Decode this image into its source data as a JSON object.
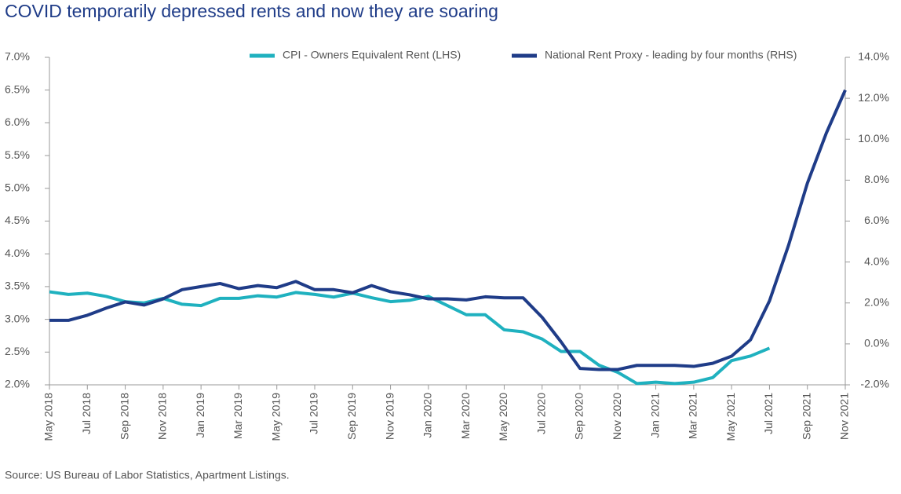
{
  "chart_data": {
    "type": "line",
    "title": "COVID temporarily depressed rents and now they are soaring",
    "source": "Source: US Bureau of Labor Statistics, Apartment Listings.",
    "categories": [
      "May 2018",
      null,
      "Jul 2018",
      null,
      "Sep 2018",
      null,
      "Nov 2018",
      null,
      "Jan 2019",
      null,
      "Mar 2019",
      null,
      "May 2019",
      null,
      "Jul 2019",
      null,
      "Sep 2019",
      null,
      "Nov 2019",
      null,
      "Jan 2020",
      null,
      "Mar 2020",
      null,
      "May 2020",
      null,
      "Jul 2020",
      null,
      "Sep 2020",
      null,
      "Nov 2020",
      null,
      "Jan 2021",
      null,
      "Mar 2021",
      null,
      "May 2021",
      null,
      "Jul 2021",
      null,
      "Sep 2021",
      null,
      "Nov 2021"
    ],
    "series": [
      {
        "name": "CPI - Owners Equivalent Rent (LHS)",
        "color": "#1fb1bf",
        "axis": "y",
        "values": [
          3.42,
          3.38,
          3.4,
          3.35,
          3.27,
          3.25,
          3.32,
          3.23,
          3.21,
          3.32,
          3.32,
          3.36,
          3.34,
          3.41,
          3.38,
          3.34,
          3.4,
          3.33,
          3.27,
          3.29,
          3.35,
          3.21,
          3.07,
          3.07,
          2.84,
          2.81,
          2.7,
          2.51,
          2.51,
          2.3,
          2.19,
          2.02,
          2.04,
          2.02,
          2.04,
          2.11,
          2.37,
          2.44,
          2.56,
          null,
          null,
          null,
          null
        ]
      },
      {
        "name": "National Rent Proxy - leading by four months (RHS)",
        "color": "#1f3c88",
        "axis": "y2",
        "values": [
          1.15,
          1.15,
          1.4,
          1.75,
          2.05,
          1.9,
          2.2,
          2.65,
          2.8,
          2.95,
          2.7,
          2.85,
          2.75,
          3.05,
          2.65,
          2.65,
          2.5,
          2.85,
          2.55,
          2.4,
          2.2,
          2.2,
          2.15,
          2.3,
          2.25,
          2.25,
          1.3,
          0.1,
          -1.2,
          -1.25,
          -1.25,
          -1.05,
          -1.05,
          -1.05,
          -1.1,
          -0.95,
          -0.6,
          0.2,
          2.1,
          4.8,
          7.85,
          10.3,
          12.4
        ]
      }
    ],
    "ylim": [
      2.0,
      7.0
    ],
    "yticks": [
      {
        "value": 2.0,
        "label": "2.0%"
      },
      {
        "value": 2.5,
        "label": "2.5%"
      },
      {
        "value": 3.0,
        "label": "3.0%"
      },
      {
        "value": 3.5,
        "label": "3.5%"
      },
      {
        "value": 4.0,
        "label": "4.0%"
      },
      {
        "value": 4.5,
        "label": "4.5%"
      },
      {
        "value": 5.0,
        "label": "5.0%"
      },
      {
        "value": 5.5,
        "label": "5.5%"
      },
      {
        "value": 6.0,
        "label": "6.0%"
      },
      {
        "value": 6.5,
        "label": "6.5%"
      },
      {
        "value": 7.0,
        "label": "7.0%"
      }
    ],
    "y2lim": [
      -2.0,
      14.0
    ],
    "y2ticks": [
      {
        "value": -2.0,
        "label": "-2.0%"
      },
      {
        "value": 0.0,
        "label": "0.0%"
      },
      {
        "value": 2.0,
        "label": "2.0%"
      },
      {
        "value": 4.0,
        "label": "4.0%"
      },
      {
        "value": 6.0,
        "label": "6.0%"
      },
      {
        "value": 8.0,
        "label": "8.0%"
      },
      {
        "value": 10.0,
        "label": "10.0%"
      },
      {
        "value": 12.0,
        "label": "12.0%"
      },
      {
        "value": 14.0,
        "label": "14.0%"
      }
    ],
    "legend": "top"
  }
}
